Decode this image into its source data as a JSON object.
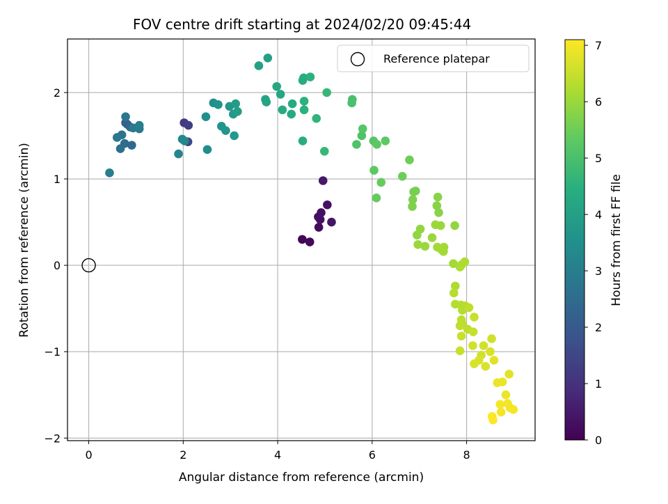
{
  "chart_data": {
    "type": "scatter",
    "title": "FOV centre drift starting at 2024/02/20 09:45:44",
    "xlabel": "Angular distance from reference (arcmin)",
    "ylabel": "Rotation from reference (arcmin)",
    "xlim": [
      -0.45,
      9.45
    ],
    "ylim": [
      -2.03,
      2.62
    ],
    "xticks": [
      0,
      2,
      4,
      6,
      8
    ],
    "yticks": [
      -2,
      -1,
      0,
      1,
      2
    ],
    "xtick_labels": [
      "0",
      "2",
      "4",
      "6",
      "8"
    ],
    "ytick_labels": [
      "−2",
      "−1",
      "0",
      "1",
      "2"
    ],
    "grid": true,
    "legend": {
      "position": "upper-right",
      "entries": [
        "Reference platepar"
      ]
    },
    "colorbar": {
      "label": "Hours from first FF file",
      "colormap": "viridis",
      "range": [
        0,
        7.1
      ],
      "ticks": [
        0,
        1,
        2,
        3,
        4,
        5,
        6,
        7
      ],
      "tick_labels": [
        "0",
        "1",
        "2",
        "3",
        "4",
        "5",
        "6",
        "7"
      ]
    },
    "reference_point": {
      "name": "Reference platepar",
      "x": 0,
      "y": 0
    },
    "points": [
      {
        "x": 4.52,
        "y": 0.3,
        "h": 0.1
      },
      {
        "x": 4.68,
        "y": 0.27,
        "h": 0.15
      },
      {
        "x": 4.87,
        "y": 0.44,
        "h": 0.2
      },
      {
        "x": 4.86,
        "y": 0.56,
        "h": 0.25
      },
      {
        "x": 4.92,
        "y": 0.61,
        "h": 0.3
      },
      {
        "x": 4.9,
        "y": 0.53,
        "h": 0.3
      },
      {
        "x": 5.05,
        "y": 0.7,
        "h": 0.35
      },
      {
        "x": 5.14,
        "y": 0.5,
        "h": 0.4
      },
      {
        "x": 4.96,
        "y": 0.98,
        "h": 0.5
      },
      {
        "x": 2.02,
        "y": 1.65,
        "h": 1.2
      },
      {
        "x": 2.11,
        "y": 1.62,
        "h": 1.3
      },
      {
        "x": 2.1,
        "y": 1.43,
        "h": 1.5
      },
      {
        "x": 0.78,
        "y": 1.65,
        "h": 2.1
      },
      {
        "x": 0.82,
        "y": 1.63,
        "h": 2.2
      },
      {
        "x": 0.88,
        "y": 1.6,
        "h": 2.3
      },
      {
        "x": 0.91,
        "y": 1.39,
        "h": 2.4
      },
      {
        "x": 0.76,
        "y": 1.41,
        "h": 2.5
      },
      {
        "x": 0.67,
        "y": 1.35,
        "h": 2.6
      },
      {
        "x": 0.7,
        "y": 1.51,
        "h": 2.7
      },
      {
        "x": 0.6,
        "y": 1.48,
        "h": 2.8
      },
      {
        "x": 0.78,
        "y": 1.72,
        "h": 2.8
      },
      {
        "x": 0.94,
        "y": 1.59,
        "h": 2.9
      },
      {
        "x": 1.07,
        "y": 1.58,
        "h": 2.9
      },
      {
        "x": 1.07,
        "y": 1.62,
        "h": 3.0
      },
      {
        "x": 0.44,
        "y": 1.07,
        "h": 3.0
      },
      {
        "x": 1.9,
        "y": 1.29,
        "h": 3.2
      },
      {
        "x": 1.98,
        "y": 1.46,
        "h": 3.3
      },
      {
        "x": 2.03,
        "y": 1.44,
        "h": 3.3
      },
      {
        "x": 2.51,
        "y": 1.34,
        "h": 3.4
      },
      {
        "x": 2.48,
        "y": 1.72,
        "h": 3.5
      },
      {
        "x": 2.64,
        "y": 1.88,
        "h": 3.5
      },
      {
        "x": 2.74,
        "y": 1.86,
        "h": 3.6
      },
      {
        "x": 2.81,
        "y": 1.61,
        "h": 3.6
      },
      {
        "x": 2.9,
        "y": 1.56,
        "h": 3.7
      },
      {
        "x": 2.98,
        "y": 1.84,
        "h": 3.7
      },
      {
        "x": 3.08,
        "y": 1.5,
        "h": 3.8
      },
      {
        "x": 3.06,
        "y": 1.75,
        "h": 3.8
      },
      {
        "x": 3.11,
        "y": 1.87,
        "h": 3.9
      },
      {
        "x": 3.15,
        "y": 1.78,
        "h": 3.9
      },
      {
        "x": 3.6,
        "y": 2.31,
        "h": 4.0
      },
      {
        "x": 3.79,
        "y": 2.4,
        "h": 4.0
      },
      {
        "x": 3.74,
        "y": 1.92,
        "h": 4.1
      },
      {
        "x": 3.76,
        "y": 1.89,
        "h": 4.1
      },
      {
        "x": 3.98,
        "y": 2.07,
        "h": 4.2
      },
      {
        "x": 4.06,
        "y": 1.98,
        "h": 4.2
      },
      {
        "x": 4.1,
        "y": 1.8,
        "h": 4.3
      },
      {
        "x": 4.31,
        "y": 1.87,
        "h": 4.3
      },
      {
        "x": 4.29,
        "y": 1.75,
        "h": 4.3
      },
      {
        "x": 4.53,
        "y": 1.44,
        "h": 4.4
      },
      {
        "x": 4.53,
        "y": 2.14,
        "h": 4.4
      },
      {
        "x": 4.55,
        "y": 2.17,
        "h": 4.4
      },
      {
        "x": 4.69,
        "y": 2.18,
        "h": 4.5
      },
      {
        "x": 4.56,
        "y": 1.8,
        "h": 4.5
      },
      {
        "x": 4.56,
        "y": 1.9,
        "h": 4.5
      },
      {
        "x": 4.82,
        "y": 1.7,
        "h": 4.6
      },
      {
        "x": 4.99,
        "y": 1.32,
        "h": 4.7
      },
      {
        "x": 5.04,
        "y": 2.0,
        "h": 4.7
      },
      {
        "x": 5.58,
        "y": 1.92,
        "h": 5.0
      },
      {
        "x": 5.57,
        "y": 1.88,
        "h": 5.0
      },
      {
        "x": 5.67,
        "y": 1.4,
        "h": 5.1
      },
      {
        "x": 5.78,
        "y": 1.5,
        "h": 5.1
      },
      {
        "x": 5.8,
        "y": 1.58,
        "h": 5.2
      },
      {
        "x": 6.03,
        "y": 1.44,
        "h": 5.2
      },
      {
        "x": 6.1,
        "y": 1.4,
        "h": 5.3
      },
      {
        "x": 6.28,
        "y": 1.44,
        "h": 5.3
      },
      {
        "x": 6.04,
        "y": 1.1,
        "h": 5.3
      },
      {
        "x": 6.19,
        "y": 0.96,
        "h": 5.4
      },
      {
        "x": 6.09,
        "y": 0.78,
        "h": 5.4
      },
      {
        "x": 6.64,
        "y": 1.03,
        "h": 5.5
      },
      {
        "x": 6.79,
        "y": 1.22,
        "h": 5.5
      },
      {
        "x": 6.88,
        "y": 0.85,
        "h": 5.6
      },
      {
        "x": 6.92,
        "y": 0.86,
        "h": 5.6
      },
      {
        "x": 6.86,
        "y": 0.76,
        "h": 5.7
      },
      {
        "x": 6.85,
        "y": 0.68,
        "h": 5.7
      },
      {
        "x": 7.39,
        "y": 0.79,
        "h": 5.8
      },
      {
        "x": 7.37,
        "y": 0.69,
        "h": 5.8
      },
      {
        "x": 7.41,
        "y": 0.61,
        "h": 5.8
      },
      {
        "x": 7.75,
        "y": 0.46,
        "h": 5.9
      },
      {
        "x": 7.02,
        "y": 0.42,
        "h": 5.9
      },
      {
        "x": 6.95,
        "y": 0.35,
        "h": 5.9
      },
      {
        "x": 6.97,
        "y": 0.24,
        "h": 6.0
      },
      {
        "x": 7.12,
        "y": 0.22,
        "h": 6.0
      },
      {
        "x": 7.27,
        "y": 0.32,
        "h": 6.0
      },
      {
        "x": 7.34,
        "y": 0.47,
        "h": 6.0
      },
      {
        "x": 7.45,
        "y": 0.46,
        "h": 6.0
      },
      {
        "x": 7.38,
        "y": 0.21,
        "h": 6.1
      },
      {
        "x": 7.47,
        "y": 0.18,
        "h": 6.1
      },
      {
        "x": 7.52,
        "y": 0.21,
        "h": 6.1
      },
      {
        "x": 7.51,
        "y": 0.16,
        "h": 6.1
      },
      {
        "x": 7.72,
        "y": 0.02,
        "h": 6.1
      },
      {
        "x": 7.9,
        "y": 0.01,
        "h": 6.2
      },
      {
        "x": 7.96,
        "y": 0.04,
        "h": 6.2
      },
      {
        "x": 7.86,
        "y": -0.02,
        "h": 6.2
      },
      {
        "x": 7.76,
        "y": -0.24,
        "h": 6.2
      },
      {
        "x": 7.73,
        "y": -0.32,
        "h": 6.3
      },
      {
        "x": 7.76,
        "y": -0.45,
        "h": 6.3
      },
      {
        "x": 7.88,
        "y": -0.46,
        "h": 6.3
      },
      {
        "x": 7.91,
        "y": -0.52,
        "h": 6.3
      },
      {
        "x": 7.97,
        "y": -0.47,
        "h": 6.3
      },
      {
        "x": 8.05,
        "y": -0.49,
        "h": 6.4
      },
      {
        "x": 7.89,
        "y": -0.63,
        "h": 6.4
      },
      {
        "x": 7.86,
        "y": -0.7,
        "h": 6.4
      },
      {
        "x": 7.91,
        "y": -0.68,
        "h": 6.4
      },
      {
        "x": 8.02,
        "y": -0.74,
        "h": 6.4
      },
      {
        "x": 7.89,
        "y": -0.82,
        "h": 6.5
      },
      {
        "x": 7.86,
        "y": -0.99,
        "h": 6.5
      },
      {
        "x": 8.14,
        "y": -0.77,
        "h": 6.5
      },
      {
        "x": 8.16,
        "y": -0.6,
        "h": 6.5
      },
      {
        "x": 8.13,
        "y": -0.93,
        "h": 6.6
      },
      {
        "x": 8.36,
        "y": -0.93,
        "h": 6.6
      },
      {
        "x": 8.53,
        "y": -0.85,
        "h": 6.6
      },
      {
        "x": 8.31,
        "y": -1.04,
        "h": 6.6
      },
      {
        "x": 8.26,
        "y": -1.1,
        "h": 6.7
      },
      {
        "x": 8.16,
        "y": -1.14,
        "h": 6.7
      },
      {
        "x": 8.4,
        "y": -1.17,
        "h": 6.7
      },
      {
        "x": 8.5,
        "y": -1.0,
        "h": 6.7
      },
      {
        "x": 8.58,
        "y": -1.1,
        "h": 6.8
      },
      {
        "x": 8.9,
        "y": -1.26,
        "h": 6.8
      },
      {
        "x": 8.65,
        "y": -1.36,
        "h": 6.9
      },
      {
        "x": 8.76,
        "y": -1.35,
        "h": 6.9
      },
      {
        "x": 8.83,
        "y": -1.5,
        "h": 6.9
      },
      {
        "x": 8.71,
        "y": -1.61,
        "h": 7.0
      },
      {
        "x": 8.87,
        "y": -1.6,
        "h": 7.0
      },
      {
        "x": 8.92,
        "y": -1.65,
        "h": 7.0
      },
      {
        "x": 8.99,
        "y": -1.67,
        "h": 7.0
      },
      {
        "x": 8.73,
        "y": -1.7,
        "h": 7.0
      },
      {
        "x": 8.54,
        "y": -1.75,
        "h": 7.1
      },
      {
        "x": 8.56,
        "y": -1.79,
        "h": 7.1
      }
    ]
  }
}
